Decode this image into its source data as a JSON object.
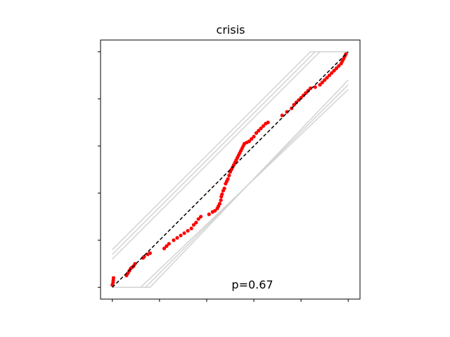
{
  "chart_data": {
    "type": "scatter",
    "title": "crisis",
    "xlabel": "",
    "ylabel": "",
    "xlim": [
      -0.05,
      1.05
    ],
    "ylim": [
      -0.05,
      1.05
    ],
    "grid": false,
    "x_tick_labels_visible": false,
    "y_tick_labels_visible": false,
    "annotation": "p=0.67",
    "colors": {
      "points": "#ff0000",
      "diagonal": "#000000",
      "bands": "#d3d3d3"
    },
    "diagonal": [
      [
        0,
        0
      ],
      [
        1,
        1
      ]
    ],
    "envelope_bands": [
      [
        [
          0,
          0.16
        ],
        [
          0.84,
          1
        ],
        [
          1,
          1
        ]
      ],
      [
        [
          0,
          0.14
        ],
        [
          0.86,
          1
        ],
        [
          1,
          1
        ]
      ],
      [
        [
          0,
          0.12
        ],
        [
          0.88,
          1
        ],
        [
          1,
          1
        ]
      ],
      [
        [
          0,
          0
        ],
        [
          0.16,
          0
        ],
        [
          1,
          0.88
        ]
      ],
      [
        [
          0,
          0
        ],
        [
          0.14,
          0
        ],
        [
          1,
          0.86
        ]
      ],
      [
        [
          0,
          0
        ],
        [
          0.12,
          0
        ],
        [
          1,
          0.84
        ]
      ]
    ],
    "points": [
      [
        0.0,
        0.01
      ],
      [
        0.003,
        0.02
      ],
      [
        0.004,
        0.03
      ],
      [
        0.005,
        0.04
      ],
      [
        0.06,
        0.05
      ],
      [
        0.066,
        0.06
      ],
      [
        0.072,
        0.07
      ],
      [
        0.078,
        0.08
      ],
      [
        0.084,
        0.085
      ],
      [
        0.09,
        0.09
      ],
      [
        0.096,
        0.1
      ],
      [
        0.13,
        0.125
      ],
      [
        0.135,
        0.13
      ],
      [
        0.15,
        0.14
      ],
      [
        0.16,
        0.145
      ],
      [
        0.22,
        0.165
      ],
      [
        0.23,
        0.175
      ],
      [
        0.24,
        0.185
      ],
      [
        0.26,
        0.2
      ],
      [
        0.275,
        0.21
      ],
      [
        0.29,
        0.22
      ],
      [
        0.305,
        0.23
      ],
      [
        0.32,
        0.24
      ],
      [
        0.335,
        0.25
      ],
      [
        0.345,
        0.265
      ],
      [
        0.355,
        0.275
      ],
      [
        0.365,
        0.29
      ],
      [
        0.375,
        0.3
      ],
      [
        0.41,
        0.31
      ],
      [
        0.425,
        0.32
      ],
      [
        0.435,
        0.325
      ],
      [
        0.445,
        0.335
      ],
      [
        0.45,
        0.345
      ],
      [
        0.455,
        0.355
      ],
      [
        0.46,
        0.37
      ],
      [
        0.462,
        0.385
      ],
      [
        0.465,
        0.395
      ],
      [
        0.47,
        0.41
      ],
      [
        0.475,
        0.42
      ],
      [
        0.48,
        0.44
      ],
      [
        0.485,
        0.45
      ],
      [
        0.49,
        0.46
      ],
      [
        0.495,
        0.475
      ],
      [
        0.5,
        0.49
      ],
      [
        0.505,
        0.5
      ],
      [
        0.51,
        0.51
      ],
      [
        0.515,
        0.52
      ],
      [
        0.52,
        0.53
      ],
      [
        0.525,
        0.54
      ],
      [
        0.53,
        0.55
      ],
      [
        0.535,
        0.56
      ],
      [
        0.54,
        0.57
      ],
      [
        0.545,
        0.58
      ],
      [
        0.55,
        0.59
      ],
      [
        0.555,
        0.6
      ],
      [
        0.56,
        0.61
      ],
      [
        0.57,
        0.615
      ],
      [
        0.58,
        0.62
      ],
      [
        0.59,
        0.63
      ],
      [
        0.6,
        0.64
      ],
      [
        0.61,
        0.655
      ],
      [
        0.62,
        0.665
      ],
      [
        0.63,
        0.675
      ],
      [
        0.64,
        0.685
      ],
      [
        0.65,
        0.695
      ],
      [
        0.66,
        0.7
      ],
      [
        0.72,
        0.73
      ],
      [
        0.74,
        0.745
      ],
      [
        0.76,
        0.76
      ],
      [
        0.77,
        0.775
      ],
      [
        0.78,
        0.785
      ],
      [
        0.79,
        0.795
      ],
      [
        0.8,
        0.805
      ],
      [
        0.81,
        0.815
      ],
      [
        0.82,
        0.825
      ],
      [
        0.83,
        0.835
      ],
      [
        0.84,
        0.845
      ],
      [
        0.86,
        0.85
      ],
      [
        0.88,
        0.86
      ],
      [
        0.89,
        0.87
      ],
      [
        0.9,
        0.88
      ],
      [
        0.91,
        0.89
      ],
      [
        0.92,
        0.9
      ],
      [
        0.93,
        0.91
      ],
      [
        0.94,
        0.92
      ],
      [
        0.95,
        0.93
      ],
      [
        0.96,
        0.94
      ],
      [
        0.97,
        0.95
      ],
      [
        0.975,
        0.96
      ],
      [
        0.98,
        0.97
      ],
      [
        0.985,
        0.98
      ],
      [
        0.99,
        0.99
      ]
    ]
  }
}
